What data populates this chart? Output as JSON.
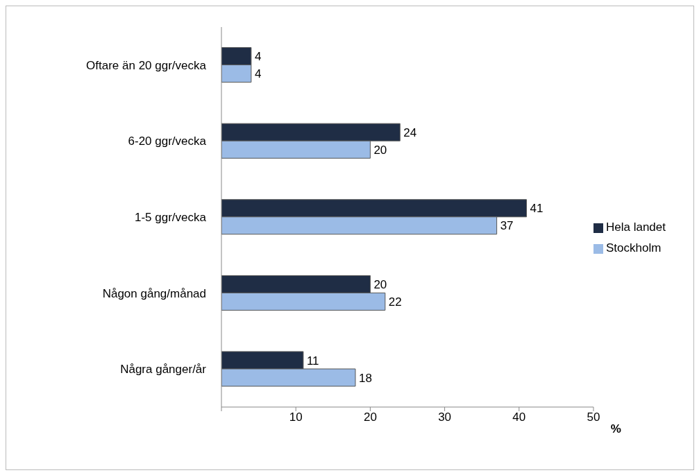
{
  "chart_data": {
    "type": "bar",
    "orientation": "horizontal",
    "categories": [
      "Oftare än 20 ggr/vecka",
      "6-20 ggr/vecka",
      "1-5 ggr/vecka",
      "Någon gång/månad",
      "Några gånger/år"
    ],
    "series": [
      {
        "name": "Hela  landet",
        "color": "#1f2d45",
        "values": [
          4,
          24,
          41,
          20,
          11
        ]
      },
      {
        "name": "Stockholm",
        "color": "#9bbbe6",
        "values": [
          4,
          20,
          37,
          22,
          18
        ]
      }
    ],
    "xlabel": "%",
    "xlim": [
      0,
      50
    ],
    "xticks": [
      {
        "value": 0,
        "label": null
      },
      10,
      20,
      30,
      40,
      50
    ],
    "data_labels": true,
    "grid": false,
    "legend": "right"
  }
}
